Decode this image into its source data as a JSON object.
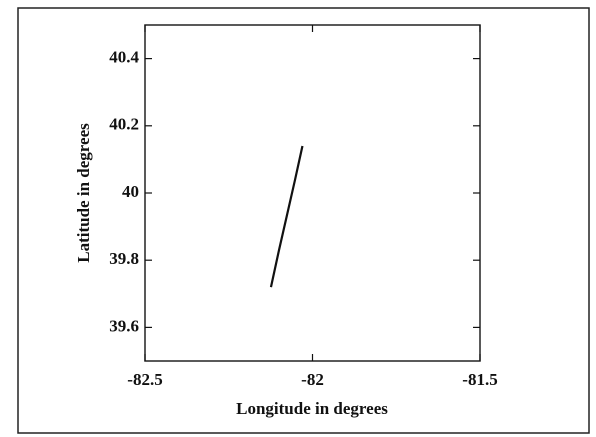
{
  "chart_data": {
    "type": "line",
    "xlabel": "Longitude in degrees",
    "ylabel": "Latitude in degrees",
    "x": [
      -82.124,
      -82.1,
      -82.076,
      -82.052,
      -82.03
    ],
    "values": [
      39.72,
      39.83,
      39.935,
      40.04,
      40.14
    ],
    "color": "#111111",
    "xlim": [
      -82.5,
      -81.5
    ],
    "xticks": [
      -82.5,
      -82,
      -81.5
    ],
    "ylim": [
      39.5,
      40.5
    ],
    "yticks": [
      39.6,
      39.8,
      40,
      40.2,
      40.4
    ],
    "grid": false
  }
}
